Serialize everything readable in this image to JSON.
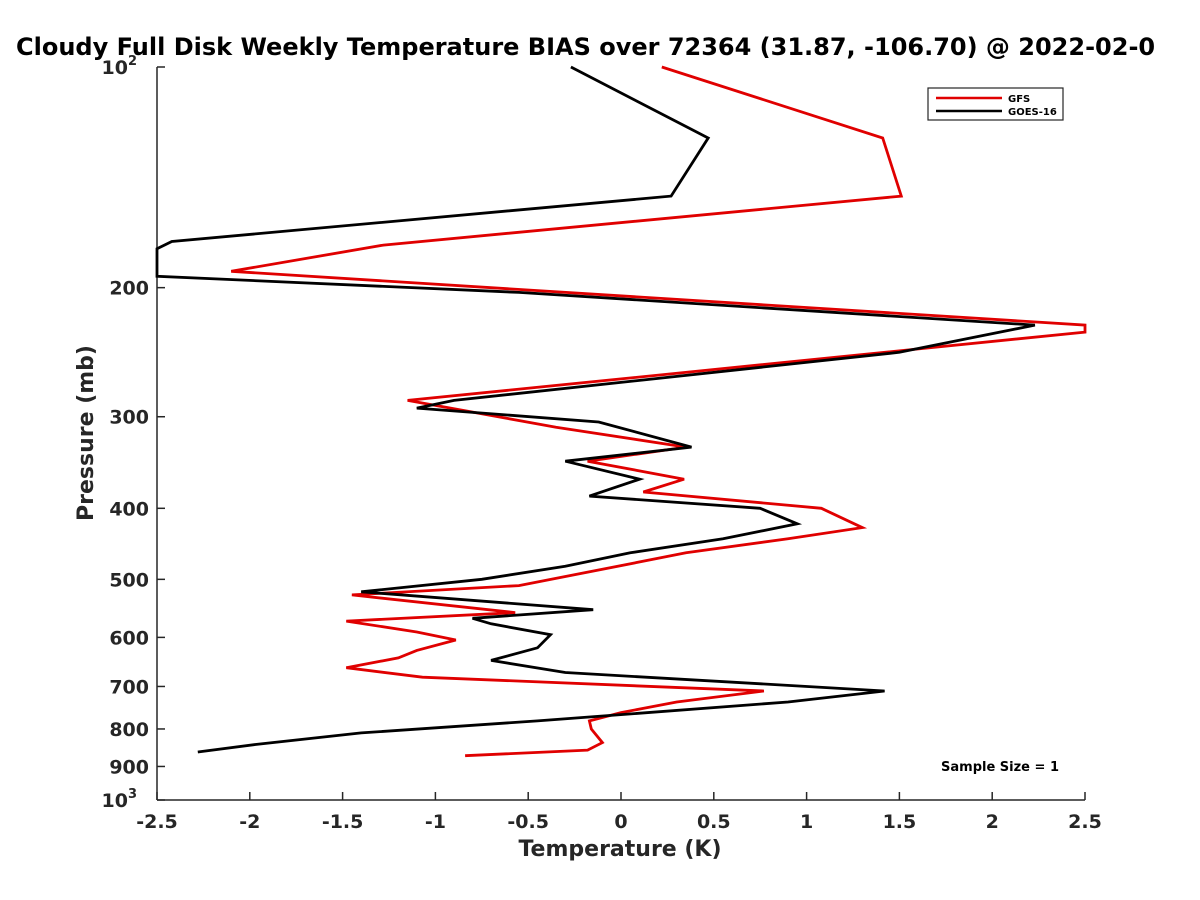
{
  "chart_data": {
    "type": "line",
    "title": "Cloudy Full Disk Weekly Temperature BIAS over 72364 (31.87, -106.70) @ 2022-02-0",
    "xlabel": "Temperature (K)",
    "ylabel": "Pressure (mb)",
    "xlim": [
      -2.5,
      2.5
    ],
    "ylim": [
      100,
      1000
    ],
    "yscale": "log",
    "y_reversed": true,
    "x_ticks": [
      -2.5,
      -2,
      -1.5,
      -1,
      -0.5,
      0,
      0.5,
      1,
      1.5,
      2,
      2.5
    ],
    "x_tick_labels": [
      "-2.5",
      "-2",
      "-1.5",
      "-1",
      "-0.5",
      "0",
      "0.5",
      "1",
      "1.5",
      "2",
      "2.5"
    ],
    "y_ticks": [
      100,
      200,
      300,
      400,
      500,
      600,
      700,
      800,
      900,
      1000
    ],
    "y_tick_labels": [
      {
        "base": "10",
        "exp": "2"
      },
      {
        "base": "200",
        "exp": ""
      },
      {
        "base": "300",
        "exp": ""
      },
      {
        "base": "400",
        "exp": ""
      },
      {
        "base": "500",
        "exp": ""
      },
      {
        "base": "600",
        "exp": ""
      },
      {
        "base": "700",
        "exp": ""
      },
      {
        "base": "800",
        "exp": ""
      },
      {
        "base": "900",
        "exp": ""
      },
      {
        "base": "10",
        "exp": "3"
      }
    ],
    "legend_position": "top-right",
    "grid": false,
    "annotation": "Sample Size = 1",
    "series": [
      {
        "name": "GFS",
        "color": "#e00000",
        "points": [
          [
            0.22,
            100
          ],
          [
            1.41,
            125
          ],
          [
            1.51,
            150
          ],
          [
            -1.28,
            175
          ],
          [
            -2.1,
            190
          ],
          [
            2.5,
            225
          ],
          [
            2.5,
            230
          ],
          [
            -1.15,
            285
          ],
          [
            -0.35,
            310
          ],
          [
            0.35,
            330
          ],
          [
            -0.18,
            345
          ],
          [
            0.34,
            365
          ],
          [
            0.12,
            380
          ],
          [
            1.08,
            400
          ],
          [
            1.3,
            425
          ],
          [
            0.9,
            440
          ],
          [
            0.35,
            460
          ],
          [
            -0.2,
            490
          ],
          [
            -0.55,
            510
          ],
          [
            -1.45,
            525
          ],
          [
            -0.57,
            555
          ],
          [
            -1.48,
            570
          ],
          [
            -1.1,
            590
          ],
          [
            -0.89,
            605
          ],
          [
            -1.1,
            625
          ],
          [
            -1.2,
            640
          ],
          [
            -1.48,
            660
          ],
          [
            -1.07,
            680
          ],
          [
            0.77,
            710
          ],
          [
            0.3,
            735
          ],
          [
            0.0,
            760
          ],
          [
            -0.17,
            780
          ],
          [
            -0.16,
            800
          ],
          [
            -0.1,
            835
          ],
          [
            -0.18,
            855
          ],
          [
            -0.84,
            870
          ]
        ]
      },
      {
        "name": "GOES-16",
        "color": "#000000",
        "points": [
          [
            -0.27,
            100
          ],
          [
            0.47,
            125
          ],
          [
            0.27,
            150
          ],
          [
            -2.42,
            173
          ],
          [
            -2.5,
            177
          ],
          [
            -2.5,
            193
          ],
          [
            -0.55,
            203
          ],
          [
            2.23,
            225
          ],
          [
            1.5,
            245
          ],
          [
            -0.9,
            285
          ],
          [
            -1.1,
            292
          ],
          [
            -0.12,
            305
          ],
          [
            0.38,
            330
          ],
          [
            -0.3,
            345
          ],
          [
            0.1,
            365
          ],
          [
            -0.17,
            385
          ],
          [
            0.75,
            400
          ],
          [
            0.95,
            420
          ],
          [
            0.55,
            440
          ],
          [
            0.05,
            460
          ],
          [
            -0.3,
            480
          ],
          [
            -0.75,
            500
          ],
          [
            -1.4,
            520
          ],
          [
            -0.15,
            550
          ],
          [
            -0.8,
            565
          ],
          [
            -0.7,
            575
          ],
          [
            -0.38,
            595
          ],
          [
            -0.45,
            620
          ],
          [
            -0.7,
            645
          ],
          [
            -0.3,
            670
          ],
          [
            1.42,
            710
          ],
          [
            0.9,
            735
          ],
          [
            -0.45,
            780
          ],
          [
            -1.4,
            810
          ],
          [
            -1.97,
            840
          ],
          [
            -2.28,
            860
          ]
        ]
      }
    ]
  }
}
